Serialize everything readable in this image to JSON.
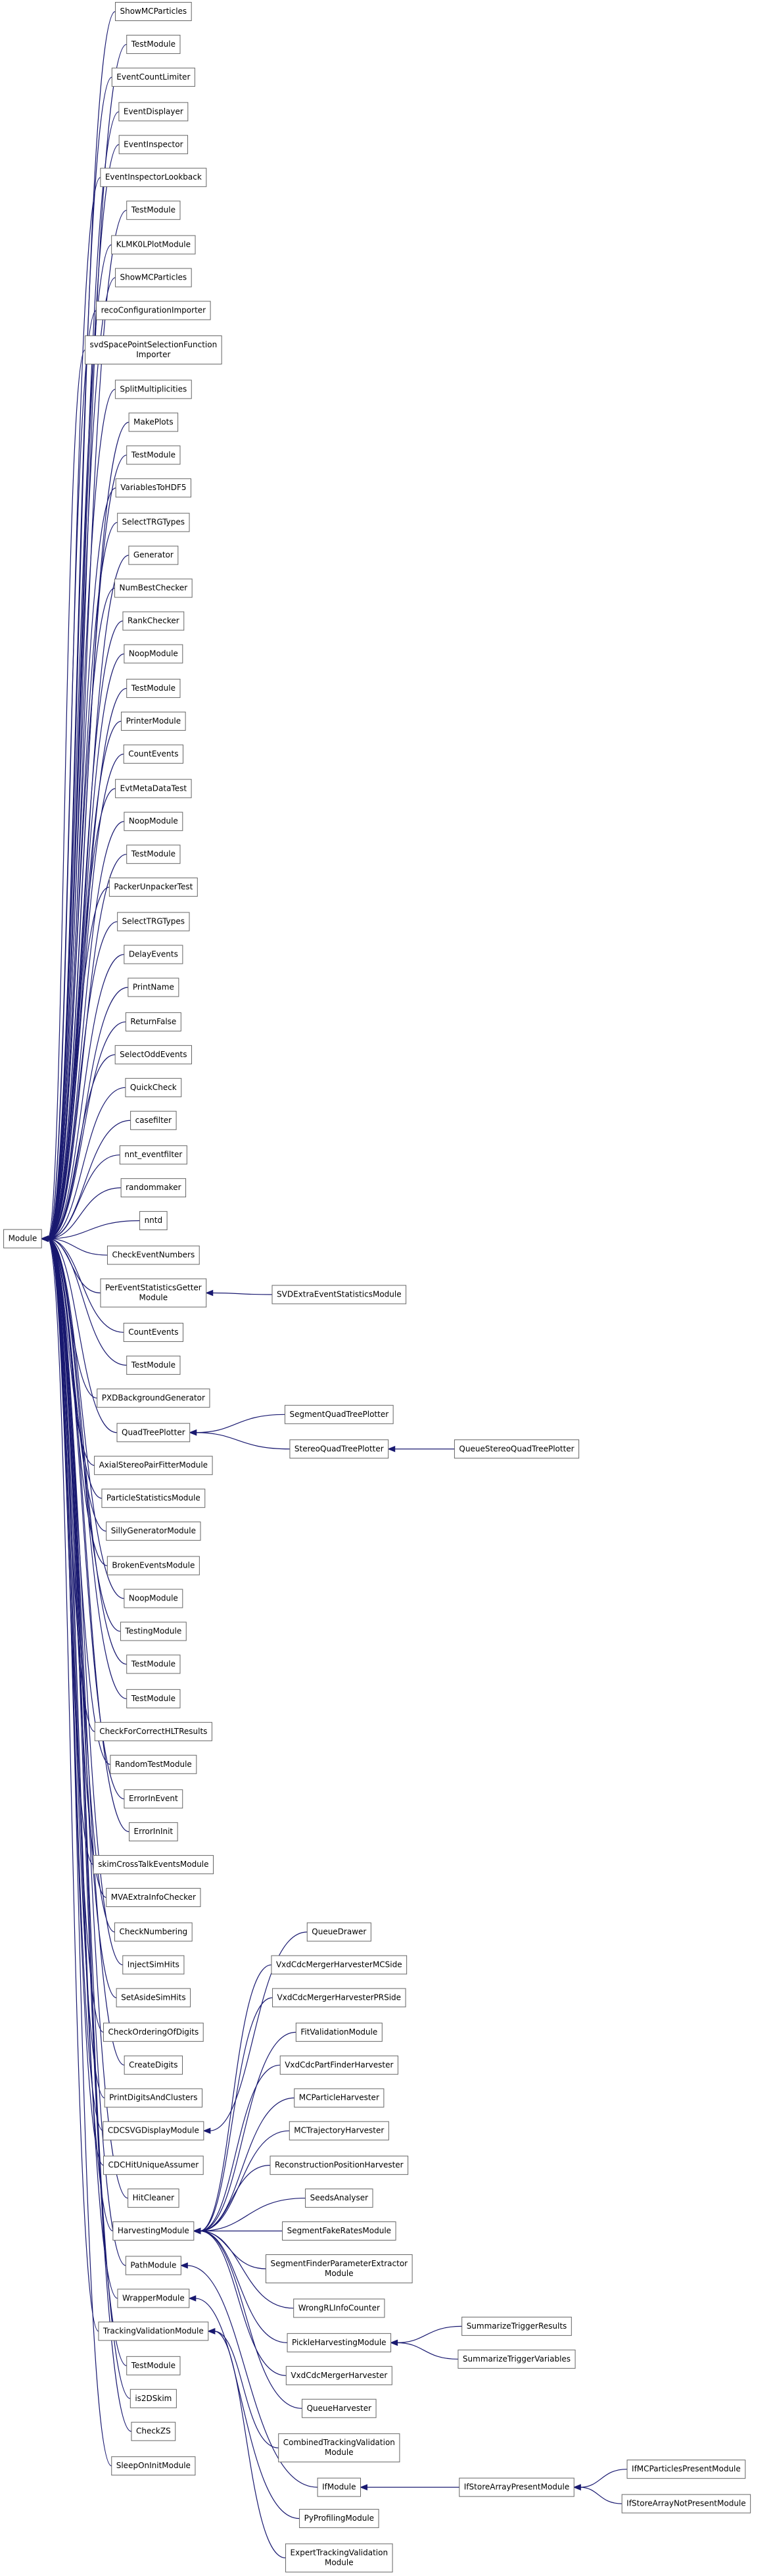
{
  "root": {
    "label": "Module",
    "children": [
      {
        "label": "ShowMCParticles"
      },
      {
        "label": "TestModule"
      },
      {
        "label": "EventCountLimiter"
      },
      {
        "label": "EventDisplayer"
      },
      {
        "label": "EventInspector"
      },
      {
        "label": "EventInspectorLookback"
      },
      {
        "label": "TestModule"
      },
      {
        "label": "KLMK0LPlotModule"
      },
      {
        "label": "ShowMCParticles"
      },
      {
        "label": "recoConfigurationImporter"
      },
      {
        "label": [
          "svdSpacePointSelectionFunction",
          "Importer"
        ]
      },
      {
        "label": "SplitMultiplicities"
      },
      {
        "label": "MakePlots"
      },
      {
        "label": "TestModule"
      },
      {
        "label": "VariablesToHDF5"
      },
      {
        "label": "SelectTRGTypes"
      },
      {
        "label": "Generator"
      },
      {
        "label": "NumBestChecker"
      },
      {
        "label": "RankChecker"
      },
      {
        "label": "NoopModule"
      },
      {
        "label": "TestModule"
      },
      {
        "label": "PrinterModule"
      },
      {
        "label": "CountEvents"
      },
      {
        "label": "EvtMetaDataTest"
      },
      {
        "label": "NoopModule"
      },
      {
        "label": "TestModule"
      },
      {
        "label": "PackerUnpackerTest"
      },
      {
        "label": "SelectTRGTypes"
      },
      {
        "label": "DelayEvents"
      },
      {
        "label": "PrintName"
      },
      {
        "label": "ReturnFalse"
      },
      {
        "label": "SelectOddEvents"
      },
      {
        "label": "QuickCheck"
      },
      {
        "label": "casefilter"
      },
      {
        "label": "nnt_eventfilter"
      },
      {
        "label": "randommaker"
      },
      {
        "label": "nntd"
      },
      {
        "label": "CheckEventNumbers"
      },
      {
        "label": [
          "PerEventStatisticsGetter",
          "Module"
        ],
        "children": [
          {
            "label": "SVDExtraEventStatisticsModule"
          }
        ]
      },
      {
        "label": "CountEvents"
      },
      {
        "label": "TestModule"
      },
      {
        "label": "PXDBackgroundGenerator"
      },
      {
        "label": "QuadTreePlotter",
        "children": [
          {
            "label": "SegmentQuadTreePlotter"
          },
          {
            "label": "StereoQuadTreePlotter",
            "children": [
              {
                "label": "QueueStereoQuadTreePlotter"
              }
            ]
          }
        ]
      },
      {
        "label": "AxialStereoPairFitterModule"
      },
      {
        "label": "ParticleStatisticsModule"
      },
      {
        "label": "SillyGeneratorModule"
      },
      {
        "label": "BrokenEventsModule"
      },
      {
        "label": "NoopModule"
      },
      {
        "label": "TestingModule"
      },
      {
        "label": "TestModule"
      },
      {
        "label": "TestModule"
      },
      {
        "label": "CheckForCorrectHLTResults"
      },
      {
        "label": "RandomTestModule"
      },
      {
        "label": "ErrorInEvent"
      },
      {
        "label": "ErrorInInit"
      },
      {
        "label": "skimCrossTalkEventsModule"
      },
      {
        "label": "MVAExtraInfoChecker"
      },
      {
        "label": "CheckNumbering"
      },
      {
        "label": "InjectSimHits"
      },
      {
        "label": "SetAsideSimHits"
      },
      {
        "label": "CheckOrderingOfDigits"
      },
      {
        "label": "CreateDigits"
      },
      {
        "label": "PrintDigitsAndClusters"
      },
      {
        "label": "CDCSVGDisplayModule",
        "children": [
          {
            "label": "QueueDrawer"
          }
        ]
      },
      {
        "label": "CDCHitUniqueAssumer"
      },
      {
        "label": "HitCleaner"
      },
      {
        "label": "HarvestingModule",
        "children": [
          {
            "label": "VxdCdcMergerHarvesterMCSide"
          },
          {
            "label": "VxdCdcMergerHarvesterPRSide"
          },
          {
            "label": "FitValidationModule"
          },
          {
            "label": "VxdCdcPartFinderHarvester"
          },
          {
            "label": "MCParticleHarvester"
          },
          {
            "label": "MCTrajectoryHarvester"
          },
          {
            "label": "ReconstructionPositionHarvester"
          },
          {
            "label": "SeedsAnalyser"
          },
          {
            "label": "SegmentFakeRatesModule"
          },
          {
            "label": [
              "SegmentFinderParameterExtractor",
              "Module"
            ]
          },
          {
            "label": "WrongRLInfoCounter"
          },
          {
            "label": "PickleHarvestingModule",
            "children": [
              {
                "label": "SummarizeTriggerResults"
              },
              {
                "label": "SummarizeTriggerVariables"
              }
            ]
          },
          {
            "label": "VxdCdcMergerHarvester"
          },
          {
            "label": "QueueHarvester"
          }
        ]
      },
      {
        "label": "PathModule",
        "children": [
          {
            "label": "IfModule",
            "children": [
              {
                "label": "IfStoreArrayPresentModule",
                "children": [
                  {
                    "label": "IfMCParticlesPresentModule"
                  },
                  {
                    "label": "IfStoreArrayNotPresentModule"
                  }
                ]
              }
            ]
          }
        ]
      },
      {
        "label": "WrapperModule",
        "children": [
          {
            "label": "PyProfilingModule"
          }
        ]
      },
      {
        "label": "TrackingValidationModule",
        "children": [
          {
            "label": [
              "CombinedTrackingValidation",
              "Module"
            ]
          },
          {
            "label": [
              "ExpertTrackingValidation",
              "Module"
            ]
          }
        ]
      },
      {
        "label": "TestModule"
      },
      {
        "label": "is2DSkim"
      },
      {
        "label": "CheckZS"
      },
      {
        "label": "SleepOnInitModule"
      }
    ]
  }
}
